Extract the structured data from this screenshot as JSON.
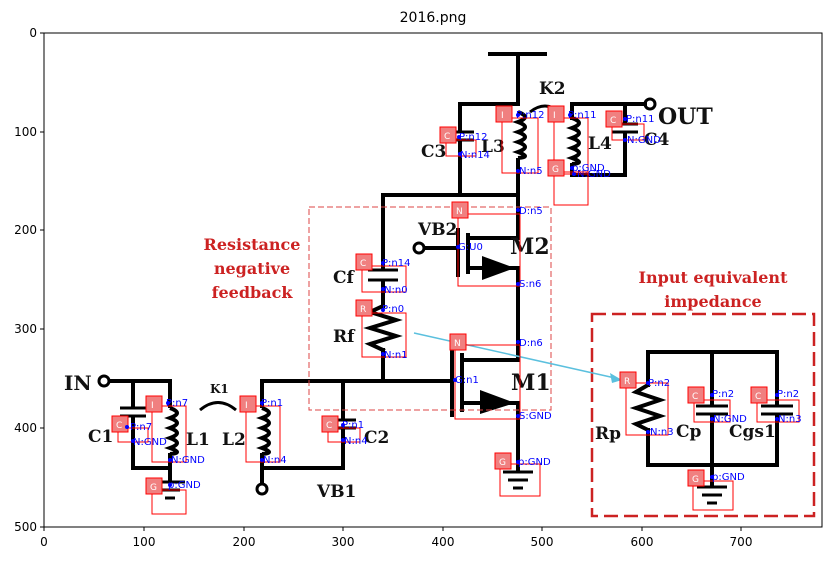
{
  "title": "2016.png",
  "axes": {
    "x_ticks": [
      "0",
      "100",
      "200",
      "300",
      "400",
      "500",
      "600",
      "700"
    ],
    "y_ticks": [
      "0",
      "100",
      "200",
      "300",
      "400",
      "500"
    ]
  },
  "circuit_labels": {
    "in": "IN",
    "out": "OUT",
    "k1": "K1",
    "k2": "K2",
    "c1": "C1",
    "l1": "L1",
    "l2": "L2",
    "c2": "C2",
    "vb1": "VB1",
    "cf": "Cf",
    "rf": "Rf",
    "vb2": "VB2",
    "m2": "M2",
    "m1": "M1",
    "c3": "C3",
    "l3": "L3",
    "l4": "L4",
    "c4": "C4",
    "rp": "Rp",
    "cp": "Cp",
    "cgs1": "Cgs1"
  },
  "captions": {
    "feedback": [
      "Resistance",
      "negative",
      "feedback"
    ],
    "input_eq": [
      "Input equivalent",
      "impedance"
    ]
  },
  "annotations": {
    "c1": {
      "tag": "C",
      "p": "P:n7",
      "n": "N:GND"
    },
    "l1": {
      "tag": "I",
      "p": "P:n7",
      "n": "N:GND"
    },
    "g1": {
      "tag": "G",
      "p": "p:GND"
    },
    "l2": {
      "tag": "I",
      "p": "P:n1",
      "n": "N:n4"
    },
    "c2": {
      "tag": "C",
      "p": "P:n1",
      "n": "N:n4"
    },
    "cf": {
      "tag": "C",
      "p": "P:n14",
      "n": "N:n0"
    },
    "rf": {
      "tag": "R",
      "p": "P:n0",
      "n": "N:n1"
    },
    "m2": {
      "tag": "N",
      "d": "D:n5",
      "g": "G:U0",
      "s": "S:n6"
    },
    "m1": {
      "tag": "N",
      "d": "D:n6",
      "g": "G:n1",
      "s": "S:GND"
    },
    "gm": {
      "tag": "G",
      "p": "p:GND"
    },
    "c3": {
      "tag": "C",
      "p": "P:n12",
      "n": "N:n14"
    },
    "l3": {
      "tag": "I",
      "p": "P:n12",
      "n": "N:n5"
    },
    "l4": {
      "tag": "I",
      "p": "P:n11",
      "n": "N:GND"
    },
    "c4": {
      "tag": "C",
      "p": "P:n11",
      "n": "N:GND"
    },
    "g4": {
      "tag": "G",
      "p": "p:GND",
      "n": "N:GND"
    },
    "rp": {
      "tag": "R",
      "p": "P:n2",
      "n": "N:n3"
    },
    "cp": {
      "tag": "C",
      "p": "P:n2",
      "n": "N:GND"
    },
    "cgs": {
      "tag": "C",
      "p": "P:n2",
      "n": "N:n3"
    },
    "gp": {
      "tag": "G",
      "p": "p:GND"
    }
  }
}
